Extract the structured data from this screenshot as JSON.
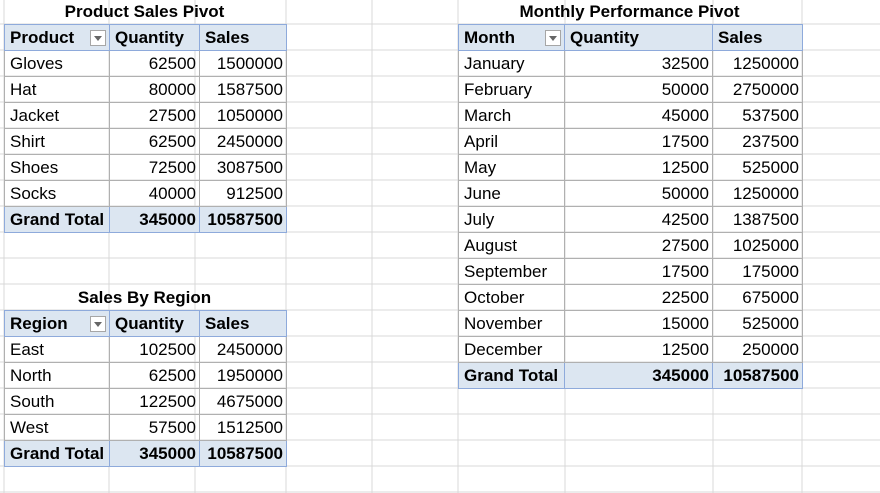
{
  "product_pivot": {
    "title": "Product Sales Pivot",
    "headers": [
      "Product",
      "Quantity",
      "Sales"
    ],
    "rows": [
      {
        "label": "Gloves",
        "quantity": "62500",
        "sales": "1500000"
      },
      {
        "label": "Hat",
        "quantity": "80000",
        "sales": "1587500"
      },
      {
        "label": "Jacket",
        "quantity": "27500",
        "sales": "1050000"
      },
      {
        "label": "Shirt",
        "quantity": "62500",
        "sales": "2450000"
      },
      {
        "label": "Shoes",
        "quantity": "72500",
        "sales": "3087500"
      },
      {
        "label": "Socks",
        "quantity": "40000",
        "sales": "912500"
      }
    ],
    "total": {
      "label": "Grand Total",
      "quantity": "345000",
      "sales": "10587500"
    }
  },
  "region_pivot": {
    "title": "Sales By Region",
    "headers": [
      "Region",
      "Quantity",
      "Sales"
    ],
    "rows": [
      {
        "label": "East",
        "quantity": "102500",
        "sales": "2450000"
      },
      {
        "label": "North",
        "quantity": "62500",
        "sales": "1950000"
      },
      {
        "label": "South",
        "quantity": "122500",
        "sales": "4675000"
      },
      {
        "label": "West",
        "quantity": "57500",
        "sales": "1512500"
      }
    ],
    "total": {
      "label": "Grand Total",
      "quantity": "345000",
      "sales": "10587500"
    }
  },
  "monthly_pivot": {
    "title": "Monthly Performance Pivot",
    "headers": [
      "Month",
      "Quantity",
      "Sales"
    ],
    "rows": [
      {
        "label": "January",
        "quantity": "32500",
        "sales": "1250000"
      },
      {
        "label": "February",
        "quantity": "50000",
        "sales": "2750000"
      },
      {
        "label": "March",
        "quantity": "45000",
        "sales": "537500"
      },
      {
        "label": "April",
        "quantity": "17500",
        "sales": "237500"
      },
      {
        "label": "May",
        "quantity": "12500",
        "sales": "525000"
      },
      {
        "label": "June",
        "quantity": "50000",
        "sales": "1250000"
      },
      {
        "label": "July",
        "quantity": "42500",
        "sales": "1387500"
      },
      {
        "label": "August",
        "quantity": "27500",
        "sales": "1025000"
      },
      {
        "label": "September",
        "quantity": "17500",
        "sales": "175000"
      },
      {
        "label": "October",
        "quantity": "22500",
        "sales": "675000"
      },
      {
        "label": "November",
        "quantity": "15000",
        "sales": "525000"
      },
      {
        "label": "December",
        "quantity": "12500",
        "sales": "250000"
      }
    ],
    "total": {
      "label": "Grand Total",
      "quantity": "345000",
      "sales": "10587500"
    }
  },
  "colors": {
    "header_fill": "#dce6f1",
    "gridline": "#d9d9d9",
    "border": "#a6a6a6"
  },
  "icons": {
    "filter_dropdown": "filter-dropdown-icon"
  }
}
